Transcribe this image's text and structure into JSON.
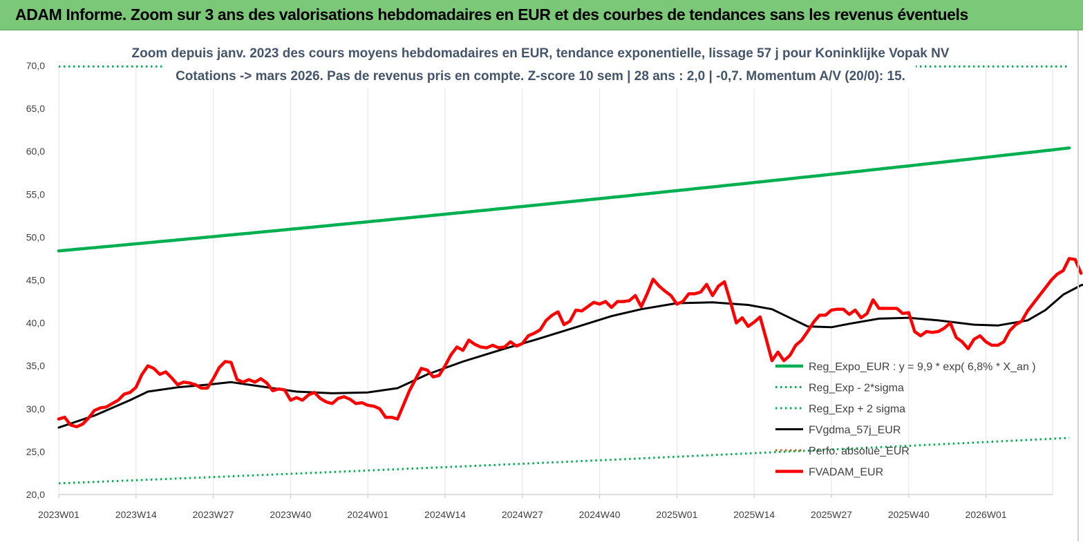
{
  "banner": {
    "title": "ADAM Informe. Zoom sur 3 ans des valorisations hebdomadaires en EUR et des courbes de tendances sans les revenus éventuels",
    "background": "#7cc879"
  },
  "chart_data": {
    "type": "line",
    "title_lines": [
      "Zoom depuis janv. 2023 des cours moyens hebdomadaires en EUR, tendance exponentielle, lissage 57 j pour Koninklijke Vopak NV",
      "Cotations -> mars 2026. Pas de revenus pris en compte. Z-score 10 sem | 28 ans : 2,0 | -0,7. Momentum A/V (20/0): 15."
    ],
    "xlabel": "",
    "ylabel": "",
    "ylim": [
      20,
      70
    ],
    "yticks": [
      "20,0",
      "25,0",
      "30,0",
      "35,0",
      "40,0",
      "45,0",
      "50,0",
      "55,0",
      "60,0",
      "65,0",
      "70,0"
    ],
    "xticks": [
      "2023W01",
      "2023W14",
      "2023W27",
      "2023W40",
      "2024W01",
      "2024W14",
      "2024W27",
      "2024W40",
      "2025W01",
      "2025W14",
      "2025W27",
      "2025W40",
      "2026W01"
    ],
    "grid": "vertical",
    "legend_position": "right",
    "week_count": 170,
    "series": [
      {
        "name": "Reg_Expo_EUR : y = 9,9 * exp( 6,8% *  X_an )",
        "color": "#00b050",
        "style": "solid-thick",
        "start": 48.4,
        "end": 60.4
      },
      {
        "name": "Reg_Exp - 2*sigma",
        "color": "#00b050",
        "style": "dotted",
        "start": 21.3,
        "end": 26.6
      },
      {
        "name": "Reg_Exp + 2 sigma",
        "color": "#00b050",
        "style": "dotted",
        "start": 69.9,
        "end": 69.9
      },
      {
        "name": "FVgdma_57j_EUR",
        "color": "#000000",
        "style": "solid",
        "points": [
          [
            0,
            27.8
          ],
          [
            6,
            29.2
          ],
          [
            12,
            31.0
          ],
          [
            15,
            32.0
          ],
          [
            20,
            32.5
          ],
          [
            25,
            32.8
          ],
          [
            29,
            33.1
          ],
          [
            34,
            32.6
          ],
          [
            40,
            32.0
          ],
          [
            46,
            31.8
          ],
          [
            52,
            31.9
          ],
          [
            57,
            32.4
          ],
          [
            62,
            34.0
          ],
          [
            68,
            35.5
          ],
          [
            75,
            37.0
          ],
          [
            80,
            38.0
          ],
          [
            87,
            39.5
          ],
          [
            93,
            40.8
          ],
          [
            98,
            41.6
          ],
          [
            104,
            42.3
          ],
          [
            110,
            42.4
          ],
          [
            116,
            42.1
          ],
          [
            120,
            41.6
          ],
          [
            126,
            39.6
          ],
          [
            130,
            39.5
          ],
          [
            133,
            39.9
          ],
          [
            138,
            40.5
          ],
          [
            143,
            40.6
          ],
          [
            148,
            40.3
          ],
          [
            154,
            39.8
          ],
          [
            158,
            39.7
          ],
          [
            163,
            40.3
          ],
          [
            166,
            41.5
          ],
          [
            169,
            43.3
          ],
          [
            172,
            44.4
          ],
          [
            174,
            44.7
          ]
        ]
      },
      {
        "name": "Perfo. absolue_EUR",
        "color": "#c55a11",
        "style": "dotted",
        "points": []
      },
      {
        "name": "FVADAM_EUR",
        "color": "#ff0000",
        "style": "solid-thick",
        "points": [
          [
            0,
            28.8
          ],
          [
            1,
            29.0
          ],
          [
            2,
            28.1
          ],
          [
            3,
            27.9
          ],
          [
            4,
            28.2
          ],
          [
            5,
            28.9
          ],
          [
            6,
            29.8
          ],
          [
            7,
            30.1
          ],
          [
            8,
            30.2
          ],
          [
            9,
            30.6
          ],
          [
            10,
            31.0
          ],
          [
            11,
            31.7
          ],
          [
            12,
            31.9
          ],
          [
            13,
            32.5
          ],
          [
            14,
            34.0
          ],
          [
            15,
            35.0
          ],
          [
            16,
            34.7
          ],
          [
            17,
            34.0
          ],
          [
            18,
            34.3
          ],
          [
            19,
            33.6
          ],
          [
            20,
            32.8
          ],
          [
            21,
            33.1
          ],
          [
            22,
            33.0
          ],
          [
            23,
            32.8
          ],
          [
            24,
            32.4
          ],
          [
            25,
            32.4
          ],
          [
            26,
            33.5
          ],
          [
            27,
            34.8
          ],
          [
            28,
            35.5
          ],
          [
            29,
            35.4
          ],
          [
            30,
            33.4
          ],
          [
            31,
            33.1
          ],
          [
            32,
            33.4
          ],
          [
            33,
            33.1
          ],
          [
            34,
            33.5
          ],
          [
            35,
            33.0
          ],
          [
            36,
            32.1
          ],
          [
            37,
            32.3
          ],
          [
            38,
            32.2
          ],
          [
            39,
            31.0
          ],
          [
            40,
            31.3
          ],
          [
            41,
            31.0
          ],
          [
            42,
            31.6
          ],
          [
            43,
            31.9
          ],
          [
            44,
            31.2
          ],
          [
            45,
            30.8
          ],
          [
            46,
            30.6
          ],
          [
            47,
            31.2
          ],
          [
            48,
            31.4
          ],
          [
            49,
            31.1
          ],
          [
            50,
            30.6
          ],
          [
            51,
            30.7
          ],
          [
            52,
            30.4
          ],
          [
            53,
            30.3
          ],
          [
            54,
            30.0
          ],
          [
            55,
            29.0
          ],
          [
            56,
            29.0
          ],
          [
            57,
            28.8
          ],
          [
            59,
            32.1
          ],
          [
            61,
            34.7
          ],
          [
            62,
            34.5
          ],
          [
            63,
            33.7
          ],
          [
            64,
            33.9
          ],
          [
            65,
            35.0
          ],
          [
            66,
            36.3
          ],
          [
            67,
            37.2
          ],
          [
            68,
            36.8
          ],
          [
            69,
            38.0
          ],
          [
            70,
            37.5
          ],
          [
            71,
            37.2
          ],
          [
            72,
            37.1
          ],
          [
            73,
            37.4
          ],
          [
            74,
            37.1
          ],
          [
            75,
            37.2
          ],
          [
            76,
            37.8
          ],
          [
            77,
            37.3
          ],
          [
            78,
            37.6
          ],
          [
            79,
            38.5
          ],
          [
            80,
            38.8
          ],
          [
            81,
            39.2
          ],
          [
            82,
            40.3
          ],
          [
            83,
            40.9
          ],
          [
            84,
            41.3
          ],
          [
            85,
            39.8
          ],
          [
            86,
            40.2
          ],
          [
            87,
            41.5
          ],
          [
            88,
            41.4
          ],
          [
            89,
            41.9
          ],
          [
            90,
            42.4
          ],
          [
            91,
            42.2
          ],
          [
            92,
            42.5
          ],
          [
            93,
            41.8
          ],
          [
            94,
            42.5
          ],
          [
            95,
            42.5
          ],
          [
            96,
            42.6
          ],
          [
            97,
            43.2
          ],
          [
            98,
            41.9
          ],
          [
            99,
            43.4
          ],
          [
            100,
            45.1
          ],
          [
            101,
            44.3
          ],
          [
            102,
            43.7
          ],
          [
            103,
            43.2
          ],
          [
            104,
            42.2
          ],
          [
            105,
            42.5
          ],
          [
            106,
            43.4
          ],
          [
            107,
            43.4
          ],
          [
            108,
            43.6
          ],
          [
            109,
            44.5
          ],
          [
            110,
            43.2
          ],
          [
            111,
            44.3
          ],
          [
            112,
            44.8
          ],
          [
            113,
            42.5
          ],
          [
            114,
            40.0
          ],
          [
            115,
            40.6
          ],
          [
            116,
            39.6
          ],
          [
            117,
            40.1
          ],
          [
            118,
            40.7
          ],
          [
            119,
            38.2
          ],
          [
            120,
            35.6
          ],
          [
            121,
            36.6
          ],
          [
            122,
            35.6
          ],
          [
            123,
            36.2
          ],
          [
            124,
            37.4
          ],
          [
            125,
            38.0
          ],
          [
            126,
            39.0
          ],
          [
            127,
            40.1
          ],
          [
            128,
            40.9
          ],
          [
            129,
            40.9
          ],
          [
            130,
            41.5
          ],
          [
            131,
            41.6
          ],
          [
            132,
            41.6
          ],
          [
            133,
            41.0
          ],
          [
            134,
            41.5
          ],
          [
            135,
            40.6
          ],
          [
            136,
            41.1
          ],
          [
            137,
            42.7
          ],
          [
            138,
            41.7
          ],
          [
            139,
            41.7
          ],
          [
            140,
            41.7
          ],
          [
            141,
            41.7
          ],
          [
            142,
            41.1
          ],
          [
            143,
            41.2
          ],
          [
            144,
            39.0
          ],
          [
            145,
            38.5
          ],
          [
            146,
            39.0
          ],
          [
            147,
            38.9
          ],
          [
            148,
            39.0
          ],
          [
            149,
            39.4
          ],
          [
            150,
            40.0
          ],
          [
            151,
            38.3
          ],
          [
            152,
            37.8
          ],
          [
            153,
            37.0
          ],
          [
            154,
            38.1
          ],
          [
            155,
            38.5
          ],
          [
            156,
            37.8
          ],
          [
            157,
            37.4
          ],
          [
            158,
            37.4
          ],
          [
            159,
            37.8
          ],
          [
            160,
            39.1
          ],
          [
            161,
            39.8
          ],
          [
            162,
            40.2
          ],
          [
            163,
            41.4
          ],
          [
            164,
            42.3
          ],
          [
            165,
            43.2
          ],
          [
            166,
            44.1
          ],
          [
            167,
            45.0
          ],
          [
            168,
            45.7
          ],
          [
            169,
            46.1
          ],
          [
            170,
            47.5
          ],
          [
            171,
            47.4
          ],
          [
            172,
            45.8
          ]
        ]
      }
    ]
  }
}
